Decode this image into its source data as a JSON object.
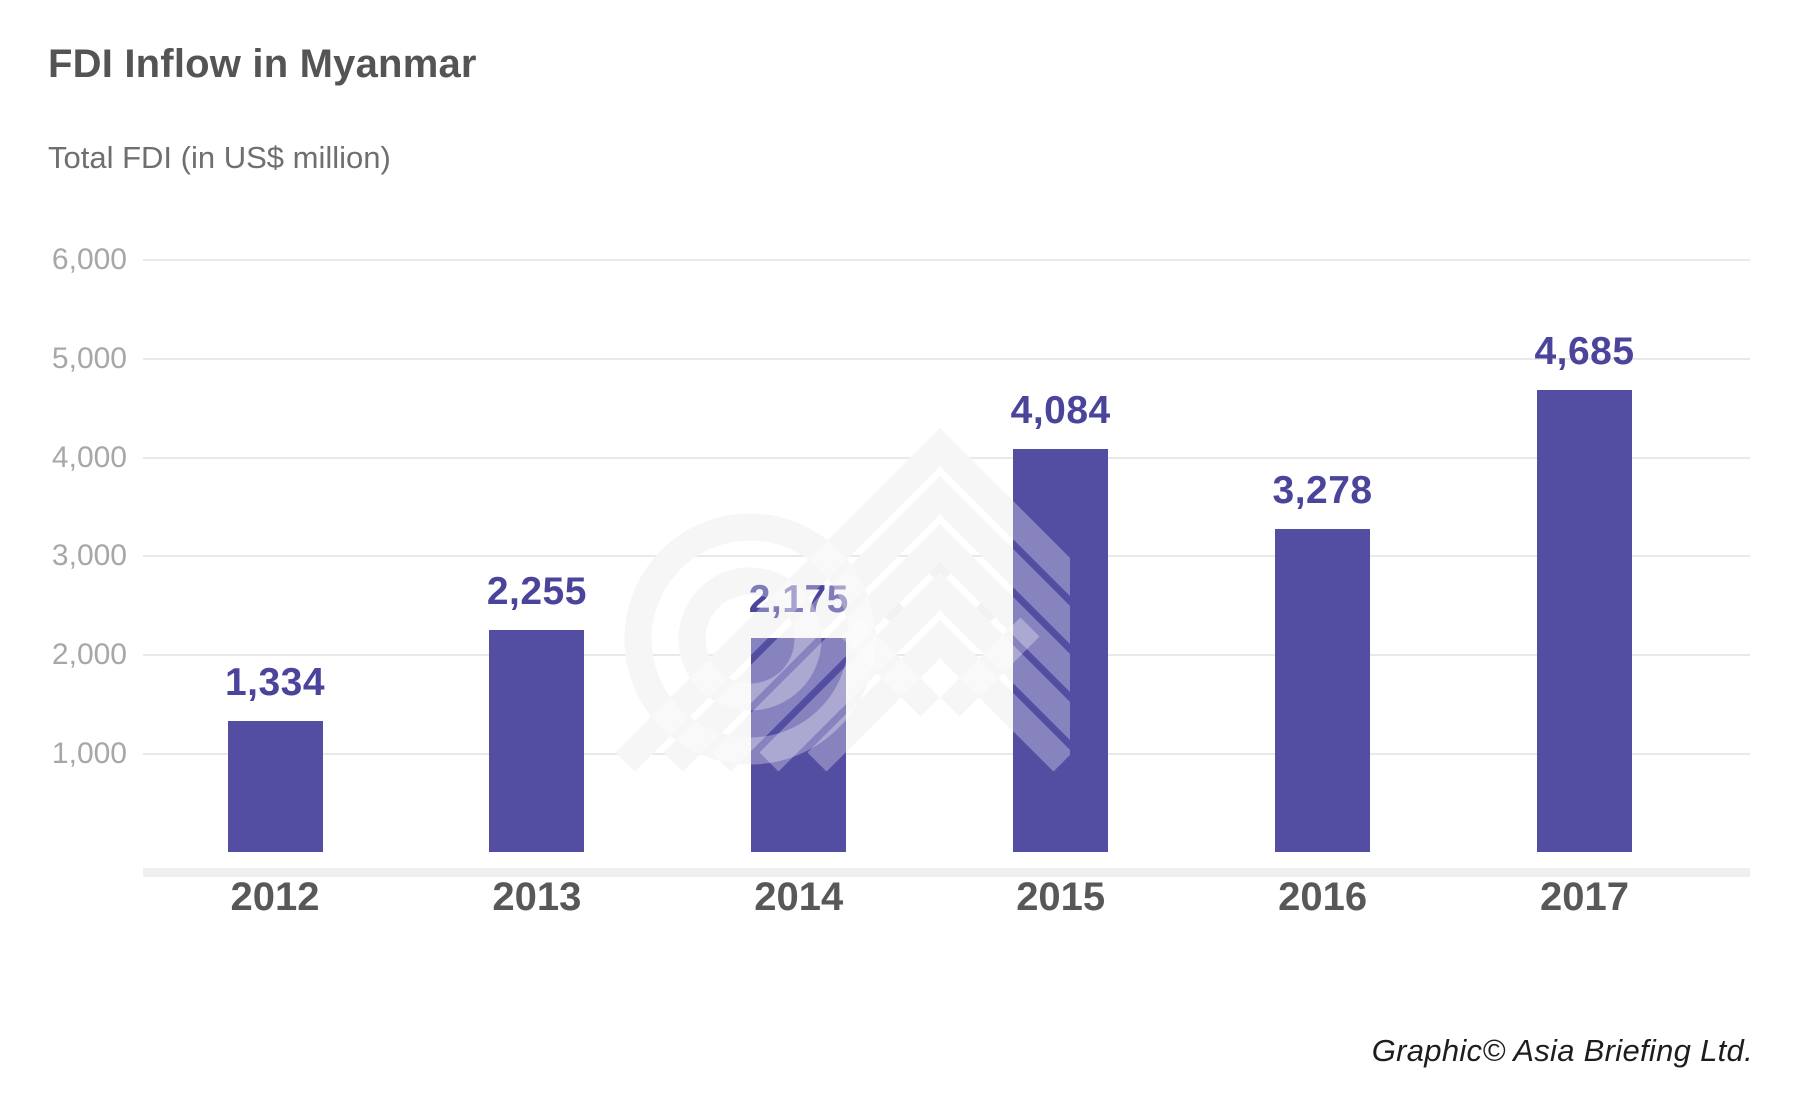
{
  "header": {
    "title": "FDI Inflow in Myanmar",
    "subtitle": "Total FDI (in US$ million)"
  },
  "footer": {
    "credit": "Graphic© Asia Briefing Ltd."
  },
  "watermark": {
    "name": "asia-briefing-logo"
  },
  "colors": {
    "bar": "#534ea2",
    "bar_label": "#4a449b",
    "axis_tick_label": "#a7a7a7",
    "year_label": "#58585a",
    "gridline": "#e9e9e9",
    "axis_band": "#efefef",
    "title": "#545456",
    "subtitle": "#6e6f71",
    "credit": "#1d1d1f",
    "watermark_gray": "#f2f2f2",
    "background": "#ffffff"
  },
  "chart_data": {
    "type": "bar",
    "title": "FDI Inflow in Myanmar",
    "ylabel": "Total FDI (in US$ million)",
    "categories": [
      "2012",
      "2013",
      "2014",
      "2015",
      "2016",
      "2017"
    ],
    "values": [
      1334,
      2255,
      2175,
      4084,
      3278,
      4685
    ],
    "value_labels": [
      "1,334",
      "2,255",
      "2,175",
      "4,084",
      "3,278",
      "4,685"
    ],
    "yticks": [
      1000,
      2000,
      3000,
      4000,
      5000,
      6000
    ],
    "ytick_labels": [
      "1,000",
      "2,000",
      "3,000",
      "4,000",
      "5,000",
      "6,000"
    ],
    "ylim": [
      0,
      6000
    ],
    "grid": "horizontal-only",
    "legend": "none",
    "bar_color": "#534ea2",
    "data_label_position": "above-bars"
  }
}
